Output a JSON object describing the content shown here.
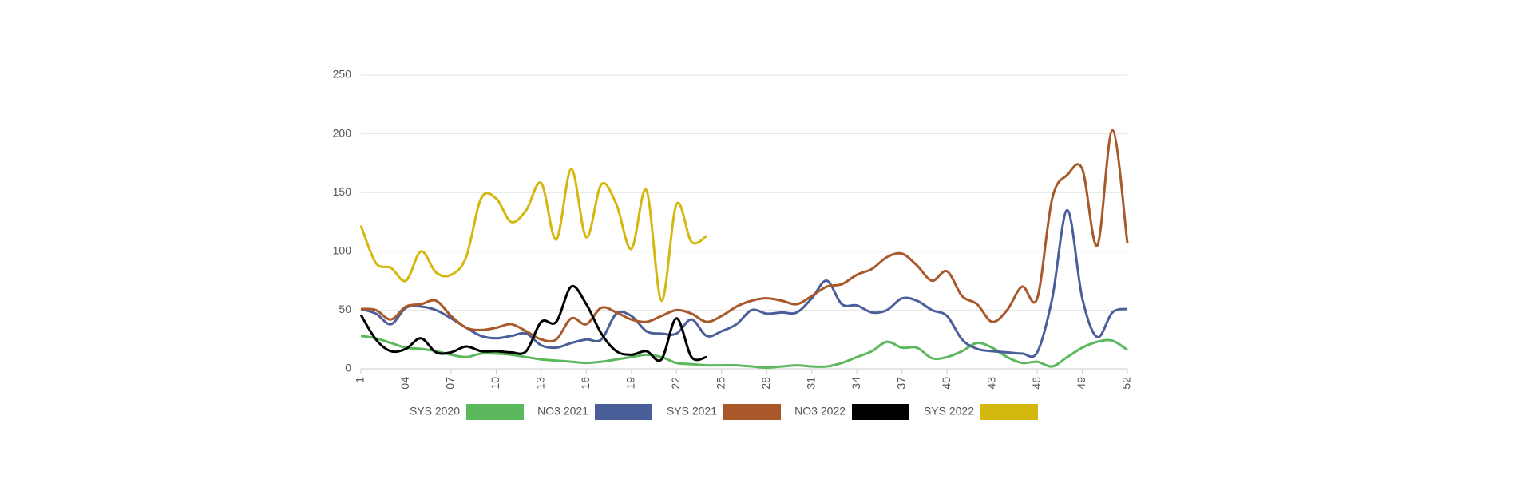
{
  "chart_data": {
    "type": "line",
    "categories": [
      "1",
      null,
      null,
      "04",
      null,
      null,
      "07",
      null,
      null,
      "10",
      null,
      null,
      "13",
      null,
      null,
      "16",
      null,
      null,
      "19",
      null,
      null,
      "22",
      null,
      null,
      "25",
      null,
      null,
      "28",
      null,
      null,
      "31",
      null,
      null,
      "34",
      null,
      null,
      "37",
      null,
      null,
      "40",
      null,
      null,
      "43",
      null,
      null,
      "46",
      null,
      null,
      "49",
      null,
      null,
      "52"
    ],
    "ylim": [
      0,
      250
    ],
    "yticks": [
      0,
      50,
      100,
      150,
      200,
      250
    ],
    "grid": true,
    "legend": "bottom",
    "series": [
      {
        "name": "SYS 2020",
        "color": "#5cb85c",
        "values": [
          28,
          26,
          22,
          18,
          17,
          15,
          12,
          10,
          13,
          13,
          12,
          10,
          8,
          7,
          6,
          5,
          6,
          8,
          10,
          12,
          10,
          5,
          4,
          3,
          3,
          3,
          2,
          1,
          2,
          3,
          2,
          2,
          5,
          10,
          15,
          23,
          18,
          18,
          9,
          10,
          15,
          22,
          18,
          10,
          5,
          6,
          2,
          10,
          18,
          23,
          24,
          16
        ]
      },
      {
        "name": "NO3 2021",
        "color": "#4a5f9a",
        "values": [
          51,
          47,
          38,
          52,
          53,
          50,
          43,
          35,
          28,
          26,
          28,
          30,
          20,
          18,
          22,
          25,
          25,
          47,
          45,
          32,
          30,
          30,
          42,
          28,
          32,
          38,
          50,
          47,
          48,
          48,
          60,
          75,
          55,
          54,
          48,
          50,
          60,
          58,
          50,
          45,
          25,
          17,
          15,
          14,
          13,
          14,
          60,
          135,
          60,
          27,
          48,
          51
        ]
      },
      {
        "name": "SYS 2021",
        "color": "#a9582a",
        "values": [
          51,
          50,
          42,
          53,
          55,
          58,
          45,
          35,
          33,
          35,
          38,
          32,
          25,
          25,
          43,
          38,
          52,
          48,
          42,
          40,
          45,
          50,
          47,
          40,
          45,
          53,
          58,
          60,
          58,
          55,
          62,
          70,
          72,
          80,
          85,
          95,
          98,
          88,
          75,
          83,
          62,
          55,
          40,
          50,
          70,
          60,
          145,
          165,
          170,
          105,
          203,
          107
        ]
      },
      {
        "name": "NO3 2022",
        "color": "#000000",
        "values": [
          46,
          25,
          15,
          17,
          26,
          14,
          14,
          19,
          15,
          15,
          14,
          15,
          40,
          40,
          70,
          55,
          30,
          15,
          12,
          15,
          8,
          43,
          10,
          10,
          null,
          null,
          null,
          null,
          null,
          null,
          null,
          null,
          null,
          null,
          null,
          null,
          null,
          null,
          null,
          null,
          null,
          null,
          null,
          null,
          null,
          null,
          null,
          null,
          null,
          null,
          null,
          null
        ]
      },
      {
        "name": "SYS 2022",
        "color": "#d4b80f",
        "values": [
          122,
          90,
          86,
          75,
          100,
          82,
          80,
          95,
          145,
          145,
          125,
          135,
          158,
          110,
          170,
          112,
          157,
          140,
          102,
          152,
          58,
          140,
          108,
          113,
          null,
          null,
          null,
          null,
          null,
          null,
          null,
          null,
          null,
          null,
          null,
          null,
          null,
          null,
          null,
          null,
          null,
          null,
          null,
          null,
          null,
          null,
          null,
          null,
          null,
          null,
          null,
          null
        ]
      }
    ]
  }
}
